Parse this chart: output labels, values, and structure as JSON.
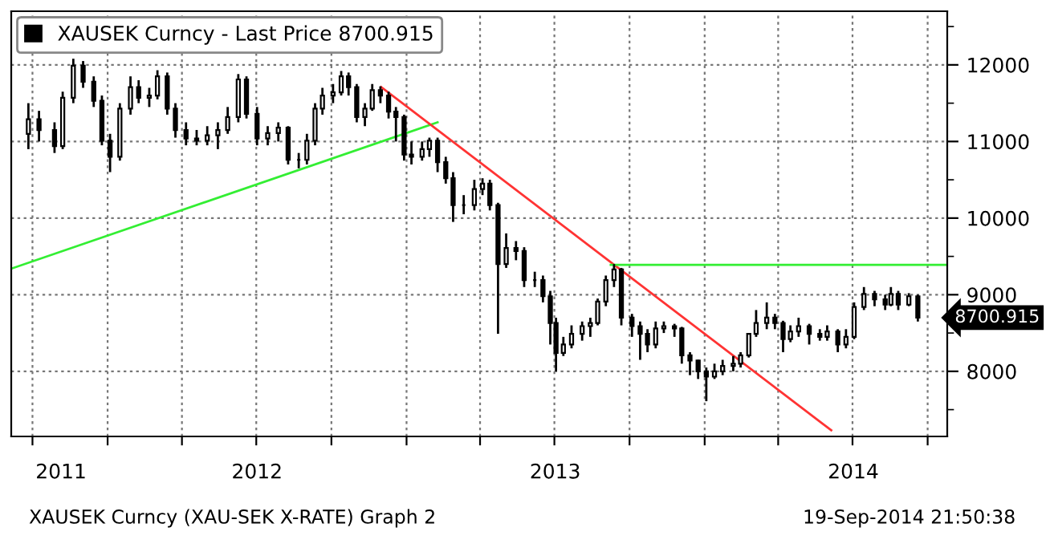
{
  "chart_data": {
    "type": "candlestick",
    "xlim": [
      "2011-09-05",
      "2014-10-25"
    ],
    "xticks": [
      {
        "value": "2011-10-01",
        "label": null
      },
      {
        "value": "2011-11-05",
        "label": "2011"
      },
      {
        "value": "2012-01-01",
        "label": null
      },
      {
        "value": "2012-04-01",
        "label": null
      },
      {
        "value": "2012-07-01",
        "label": null
      },
      {
        "value": "2012-07-02",
        "label": "2012"
      },
      {
        "value": "2012-10-01",
        "label": null
      },
      {
        "value": "2013-01-01",
        "label": null
      },
      {
        "value": "2013-04-01",
        "label": null
      },
      {
        "value": "2013-07-01",
        "label": null
      },
      {
        "value": "2013-07-02",
        "label": "2013"
      },
      {
        "value": "2013-10-01",
        "label": null
      },
      {
        "value": "2014-01-01",
        "label": null
      },
      {
        "value": "2014-04-01",
        "label": null
      },
      {
        "value": "2014-07-01",
        "label": null
      },
      {
        "value": "2014-07-02",
        "label": "2014"
      },
      {
        "value": "2014-10-01",
        "label": null
      }
    ],
    "ylim": [
      7150,
      12700
    ],
    "yticks": [
      {
        "value": 7500,
        "label": null
      },
      8000,
      {
        "value": 8500,
        "label": null
      },
      9000,
      {
        "value": 9500,
        "label": null
      },
      10000,
      {
        "value": 10500,
        "label": null
      },
      11000,
      {
        "value": 11500,
        "label": null
      },
      12000,
      {
        "value": 12500,
        "label": null
      }
    ],
    "grid": true,
    "legend": "top left",
    "series": [
      {
        "name": "XAUSEK Curncy - Last Price 8700.915",
        "color": "#000000",
        "x": [
          "2011-09-26",
          "2011-10-09",
          "2011-10-28",
          "2011-11-07",
          "2011-11-20",
          "2011-12-02",
          "2011-12-15",
          "2011-12-25",
          "2012-01-04",
          "2012-01-16",
          "2012-01-29",
          "2012-02-08",
          "2012-02-21",
          "2012-03-02",
          "2012-03-14",
          "2012-03-24",
          "2012-04-06",
          "2012-04-19",
          "2012-05-02",
          "2012-05-15",
          "2012-05-27",
          "2012-06-09",
          "2012-06-19",
          "2012-07-02",
          "2012-07-15",
          "2012-07-28",
          "2012-08-09",
          "2012-08-22",
          "2012-09-01",
          "2012-09-11",
          "2012-09-20",
          "2012-10-03",
          "2012-10-13",
          "2012-10-22",
          "2012-11-01",
          "2012-11-11",
          "2012-11-20",
          "2012-11-30",
          "2012-12-10",
          "2012-12-19",
          "2012-12-29",
          "2013-01-07",
          "2013-01-20",
          "2013-01-29",
          "2013-02-08",
          "2013-02-18",
          "2013-02-27",
          "2013-03-12",
          "2013-03-25",
          "2013-04-04",
          "2013-04-13",
          "2013-04-23",
          "2013-05-03",
          "2013-05-15",
          "2013-05-25",
          "2013-06-07",
          "2013-06-17",
          "2013-06-26",
          "2013-07-03",
          "2013-07-12",
          "2013-07-22",
          "2013-08-04",
          "2013-08-14",
          "2013-08-23",
          "2013-09-02",
          "2013-09-12",
          "2013-09-21",
          "2013-10-04",
          "2013-10-14",
          "2013-10-23",
          "2013-11-02",
          "2013-11-12",
          "2013-11-25",
          "2013-12-04",
          "2013-12-14",
          "2013-12-24",
          "2014-01-03",
          "2014-01-13",
          "2014-01-23",
          "2014-02-05",
          "2014-02-14",
          "2014-02-24",
          "2014-03-05",
          "2014-03-18",
          "2014-03-28",
          "2014-04-07",
          "2014-04-16",
          "2014-04-26",
          "2014-05-09",
          "2014-05-22",
          "2014-05-31",
          "2014-06-13",
          "2014-06-23",
          "2014-07-03",
          "2014-07-15",
          "2014-07-28",
          "2014-08-10",
          "2014-08-17",
          "2014-08-26",
          "2014-09-08",
          "2014-09-19"
        ],
        "ohlc": [
          [
            11100,
            11500,
            10900,
            11290
          ],
          [
            11290,
            11400,
            11000,
            11150
          ],
          [
            11150,
            11250,
            10850,
            10940
          ],
          [
            10940,
            11650,
            10900,
            11570
          ],
          [
            11570,
            12080,
            11500,
            11990
          ],
          [
            11990,
            12050,
            11700,
            11780
          ],
          [
            11780,
            11850,
            11450,
            11530
          ],
          [
            11530,
            11600,
            10950,
            11010
          ],
          [
            11010,
            11100,
            10600,
            10800
          ],
          [
            10800,
            11500,
            10750,
            11430
          ],
          [
            11430,
            11850,
            11350,
            11710
          ],
          [
            11710,
            11800,
            11500,
            11570
          ],
          [
            11570,
            11700,
            11450,
            11600
          ],
          [
            11600,
            11930,
            11550,
            11850
          ],
          [
            11850,
            11900,
            11350,
            11430
          ],
          [
            11430,
            11500,
            11050,
            11150
          ],
          [
            11150,
            11250,
            10950,
            11040
          ],
          [
            11040,
            11150,
            10950,
            11010
          ],
          [
            11010,
            11200,
            10950,
            11080
          ],
          [
            11080,
            11250,
            10900,
            11150
          ],
          [
            11150,
            11450,
            11100,
            11320
          ],
          [
            11320,
            11880,
            11250,
            11810
          ],
          [
            11810,
            11850,
            11300,
            11360
          ],
          [
            11360,
            11450,
            10950,
            11040
          ],
          [
            11040,
            11200,
            10950,
            11110
          ],
          [
            11110,
            11250,
            11000,
            11180
          ],
          [
            11180,
            11200,
            10700,
            10760
          ],
          [
            10760,
            10850,
            10650,
            10760
          ],
          [
            10760,
            11100,
            10700,
            11010
          ],
          [
            11010,
            11500,
            10950,
            11430
          ],
          [
            11430,
            11700,
            11350,
            11600
          ],
          [
            11600,
            11750,
            11500,
            11640
          ],
          [
            11640,
            11920,
            11600,
            11850
          ],
          [
            11850,
            11900,
            11600,
            11710
          ],
          [
            11710,
            11750,
            11250,
            11320
          ],
          [
            11320,
            11500,
            11200,
            11430
          ],
          [
            11430,
            11750,
            11400,
            11670
          ],
          [
            11670,
            11720,
            11500,
            11600
          ],
          [
            11600,
            11650,
            11300,
            11390
          ],
          [
            11390,
            11450,
            11000,
            11320
          ],
          [
            11320,
            11350,
            10750,
            10830
          ],
          [
            10830,
            11000,
            10700,
            10800
          ],
          [
            10800,
            11000,
            10750,
            10900
          ],
          [
            10900,
            11050,
            10800,
            11010
          ],
          [
            11010,
            11050,
            10600,
            10730
          ],
          [
            10730,
            10800,
            10450,
            10520
          ],
          [
            10520,
            10600,
            9950,
            10170
          ],
          [
            10170,
            10300,
            10050,
            10170
          ],
          [
            10170,
            10500,
            10100,
            10380
          ],
          [
            10380,
            10520,
            10300,
            10450
          ],
          [
            10450,
            10500,
            10100,
            10170
          ],
          [
            10170,
            10200,
            8490,
            9400
          ],
          [
            9400,
            9800,
            9350,
            9610
          ],
          [
            9610,
            9700,
            9450,
            9570
          ],
          [
            9570,
            9620,
            9100,
            9190
          ],
          [
            9190,
            9300,
            9100,
            9190
          ],
          [
            9190,
            9250,
            8900,
            8980
          ],
          [
            8980,
            9050,
            8350,
            8630
          ],
          [
            8630,
            8700,
            8000,
            8240
          ],
          [
            8240,
            8450,
            8200,
            8350
          ],
          [
            8350,
            8600,
            8300,
            8490
          ],
          [
            8490,
            8650,
            8400,
            8590
          ],
          [
            8590,
            8700,
            8450,
            8630
          ],
          [
            8630,
            8950,
            8600,
            8910
          ],
          [
            8910,
            9250,
            8850,
            9190
          ],
          [
            9190,
            9400,
            9100,
            9330
          ],
          [
            9330,
            9350,
            8600,
            8700
          ],
          [
            8700,
            8750,
            8450,
            8590
          ],
          [
            8590,
            8650,
            8150,
            8490
          ],
          [
            8490,
            8550,
            8250,
            8350
          ],
          [
            8350,
            8650,
            8300,
            8560
          ],
          [
            8560,
            8650,
            8500,
            8590
          ],
          [
            8590,
            8620,
            8450,
            8560
          ],
          [
            8560,
            8580,
            8100,
            8210
          ],
          [
            8210,
            8250,
            7950,
            8140
          ],
          [
            8140,
            8150,
            7900,
            8000
          ],
          [
            8000,
            8050,
            7610,
            7930
          ],
          [
            7930,
            8100,
            7900,
            8000
          ],
          [
            8000,
            8150,
            7950,
            8070
          ],
          [
            8070,
            8200,
            8000,
            8100
          ],
          [
            8100,
            8250,
            8050,
            8210
          ],
          [
            8210,
            8500,
            8180,
            8490
          ],
          [
            8490,
            8800,
            8450,
            8630
          ],
          [
            8630,
            8900,
            8550,
            8700
          ],
          [
            8700,
            8750,
            8550,
            8630
          ],
          [
            8630,
            8660,
            8250,
            8420
          ],
          [
            8420,
            8600,
            8380,
            8520
          ],
          [
            8520,
            8700,
            8450,
            8590
          ],
          [
            8590,
            8620,
            8350,
            8490
          ],
          [
            8490,
            8550,
            8400,
            8450
          ],
          [
            8450,
            8600,
            8400,
            8520
          ],
          [
            8520,
            8550,
            8250,
            8350
          ],
          [
            8350,
            8550,
            8300,
            8450
          ],
          [
            8450,
            8900,
            8420,
            8840
          ],
          [
            8840,
            9100,
            8800,
            9010
          ],
          [
            9010,
            9050,
            8850,
            8940
          ],
          [
            8940,
            9000,
            8800,
            8870
          ],
          [
            8870,
            9100,
            8850,
            9010
          ],
          [
            9010,
            9050,
            8800,
            8870
          ],
          [
            8870,
            9020,
            8850,
            8980
          ],
          [
            8980,
            9000,
            8650,
            8701
          ]
        ]
      },
      {
        "type": "line",
        "color": "#33ee33",
        "x": [
          "2011-09-05",
          "2013-02-08"
        ],
        "values": [
          9340,
          11250
        ]
      },
      {
        "type": "line",
        "color": "#ff3333",
        "x": [
          "2012-12-01",
          "2014-06-05"
        ],
        "values": [
          11710,
          7230
        ]
      },
      {
        "type": "line",
        "color": "#33ee33",
        "x": [
          "2013-09-08",
          "2014-10-25"
        ],
        "values": [
          9390,
          9390
        ]
      }
    ],
    "annotations": [
      {
        "text": "8700.915",
        "x": "2014-09-19",
        "y": 8700.915
      },
      "XAUSEK Curncy (XAU-SEK X-RATE) Graph 2",
      "19-Sep-2014 21:50:38"
    ]
  }
}
